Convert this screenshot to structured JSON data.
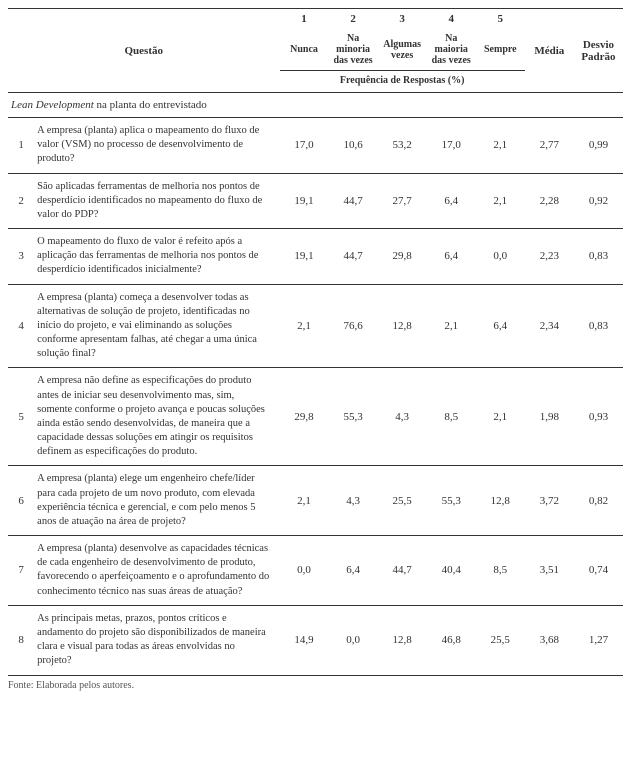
{
  "headers": {
    "questao": "Questão",
    "scale_nums": [
      "1",
      "2",
      "3",
      "4",
      "5"
    ],
    "scale_labels": [
      "Nunca",
      "Na minoria das vezes",
      "Algumas vezes",
      "Na maioria das vezes",
      "Sempre"
    ],
    "media": "Média",
    "desvio": "Desvio Padrão",
    "freq": "Frequência de Respostas (%)"
  },
  "section_title_italic": "Lean Development",
  "section_title_rest": " na planta do entrevistado",
  "rows": [
    {
      "n": "1",
      "q": "A empresa (planta) aplica o mapeamento do fluxo de valor (VSM) no processo de desenvolvimento de produto?",
      "v": [
        "17,0",
        "10,6",
        "53,2",
        "17,0",
        "2,1"
      ],
      "m": "2,77",
      "dp": "0,99"
    },
    {
      "n": "2",
      "q": "São aplicadas ferramentas de melhoria nos pontos de desperdício identificados no mapeamento do fluxo de valor do PDP?",
      "v": [
        "19,1",
        "44,7",
        "27,7",
        "6,4",
        "2,1"
      ],
      "m": "2,28",
      "dp": "0,92"
    },
    {
      "n": "3",
      "q": "O mapeamento do fluxo de valor é refeito após a aplicação das ferramentas de melhoria nos pontos de desperdício identificados inicialmente?",
      "v": [
        "19,1",
        "44,7",
        "29,8",
        "6,4",
        "0,0"
      ],
      "m": "2,23",
      "dp": "0,83"
    },
    {
      "n": "4",
      "q": "A empresa (planta) começa a desenvolver todas as alternativas de solução de projeto, identificadas no início do projeto, e vai eliminando as soluções conforme apresentam falhas, até chegar a uma única solução final?",
      "v": [
        "2,1",
        "76,6",
        "12,8",
        "2,1",
        "6,4"
      ],
      "m": "2,34",
      "dp": "0,83"
    },
    {
      "n": "5",
      "q": "A empresa não define as especificações do produto antes de iniciar seu desenvolvimento mas, sim, somente conforme o projeto avança e poucas soluções ainda estão sendo desenvolvidas, de maneira que a capacidade dessas soluções em atingir os requisitos definem as especificações do produto.",
      "v": [
        "29,8",
        "55,3",
        "4,3",
        "8,5",
        "2,1"
      ],
      "m": "1,98",
      "dp": "0,93"
    },
    {
      "n": "6",
      "q": "A empresa (planta) elege um engenheiro chefe/líder para cada projeto de um novo produto, com elevada experiência técnica e gerencial, e com pelo menos 5 anos de atuação na área de projeto?",
      "v": [
        "2,1",
        "4,3",
        "25,5",
        "55,3",
        "12,8"
      ],
      "m": "3,72",
      "dp": "0,82"
    },
    {
      "n": "7",
      "q": "A empresa (planta) desenvolve as capacidades técnicas de cada engenheiro de desenvolvimento de produto, favorecendo o aperfeiçoamento e o aprofundamento do conhecimento técnico nas suas áreas de atuação?",
      "v": [
        "0,0",
        "6,4",
        "44,7",
        "40,4",
        "8,5"
      ],
      "m": "3,51",
      "dp": "0,74"
    },
    {
      "n": "8",
      "q": "As principais metas, prazos, pontos críticos e andamento do projeto são disponibilizados de maneira clara e visual para todas as áreas envolvidas no projeto?",
      "v": [
        "14,9",
        "0,0",
        "12,8",
        "46,8",
        "25,5"
      ],
      "m": "3,68",
      "dp": "1,27"
    }
  ],
  "source": "Fonte: Elaborada pelos autores."
}
